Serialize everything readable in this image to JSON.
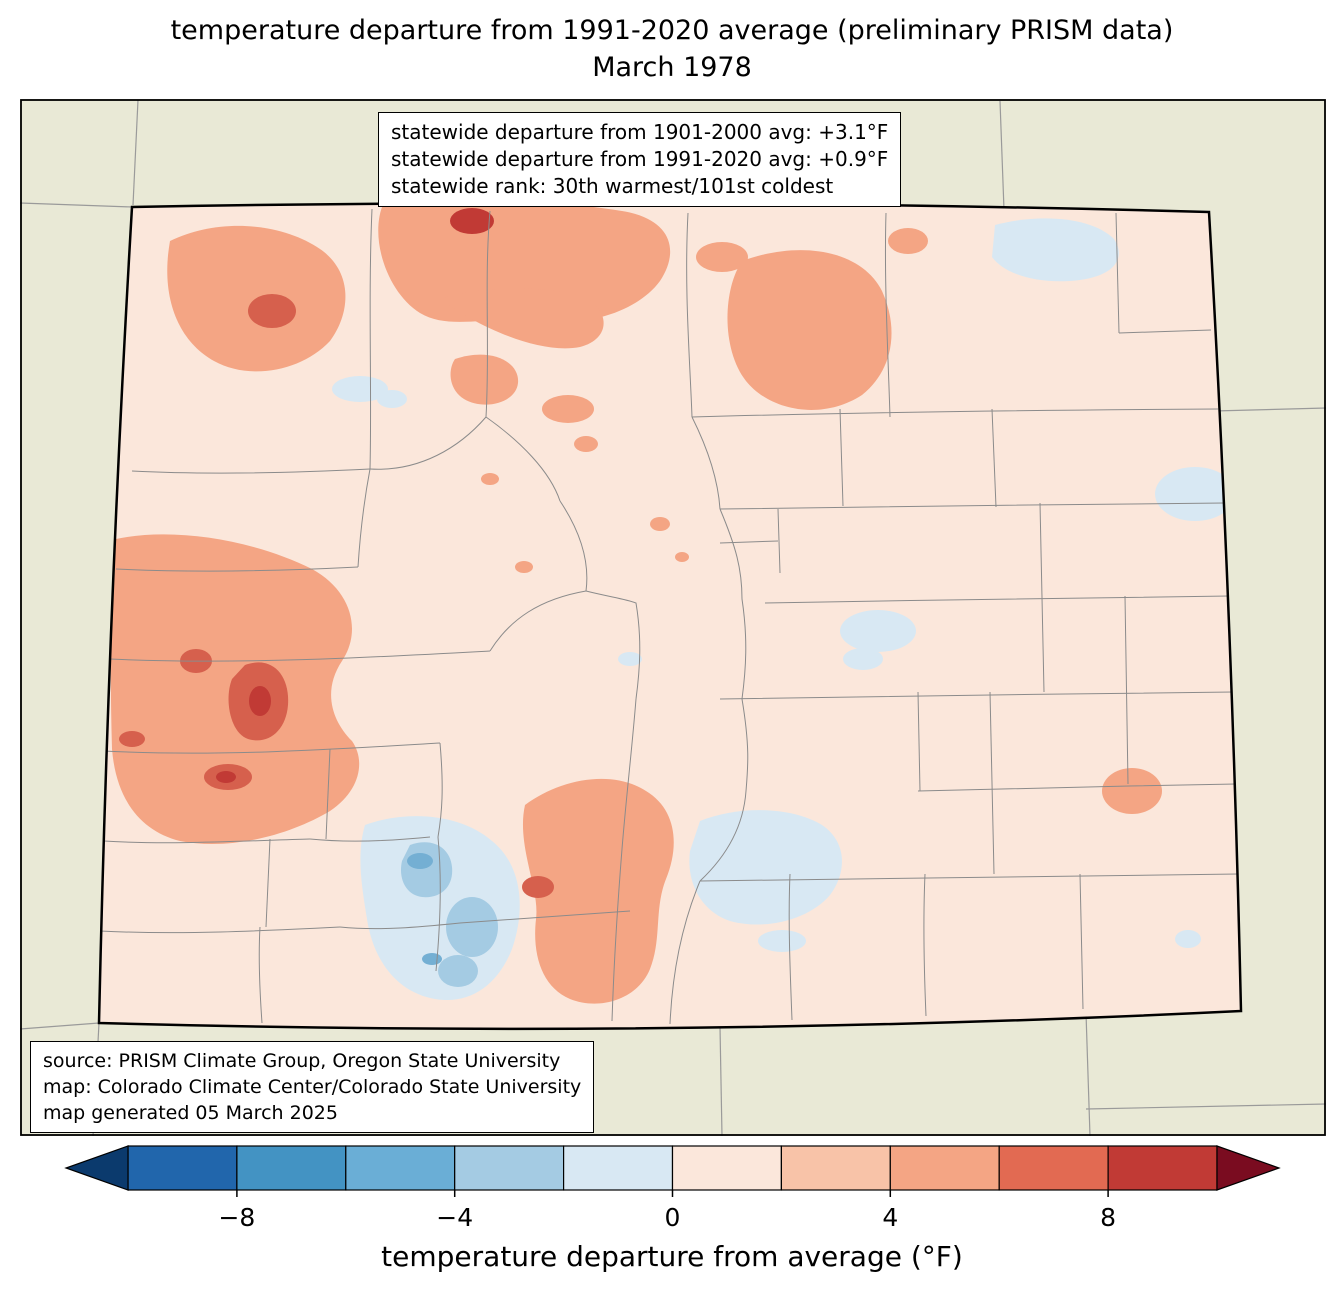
{
  "title": {
    "line1": "temperature departure from 1991-2020 average (preliminary PRISM data)",
    "line2": "March 1978"
  },
  "info_box": {
    "lines": [
      "statewide departure from 1901-2000 avg: +3.1°F",
      "statewide departure from 1991-2020 avg: +0.9°F",
      "statewide rank: 30th warmest/101st coldest"
    ]
  },
  "source_box": {
    "lines": [
      "source: PRISM Climate Group, Oregon State University",
      "map: Colorado Climate Center/Colorado State University",
      "map generated 05 March 2025"
    ]
  },
  "map": {
    "region": "Colorado",
    "palette": {
      "outside_state": "#e9e9d6",
      "base_departure_0_2": "#fbe7db",
      "warm_2_4": "#f4a584",
      "warm_4_6": "#d6604d",
      "warm_6_8": "#c13a35",
      "cool_0_-2": "#d8e8f3",
      "cool_-2_-4": "#a4cbe3",
      "cool_-4_-6": "#74afd3",
      "county_line": "#8b8b8b",
      "state_line": "#000000"
    }
  },
  "colorbar": {
    "label": "temperature departure from average (°F)",
    "ticks": [
      "−8",
      "−4",
      "0",
      "4",
      "8"
    ],
    "tick_values": [
      -8,
      -4,
      0,
      4,
      8
    ],
    "range": [
      -10,
      10
    ],
    "segment_colors": [
      "#2166ac",
      "#4393c3",
      "#6aaed6",
      "#a4cbe3",
      "#d8e8f3",
      "#fbe7db",
      "#f8c3a8",
      "#f4a584",
      "#e26a52",
      "#c13a35"
    ],
    "under_color": "#0b3a6d",
    "over_color": "#7a0c20"
  }
}
